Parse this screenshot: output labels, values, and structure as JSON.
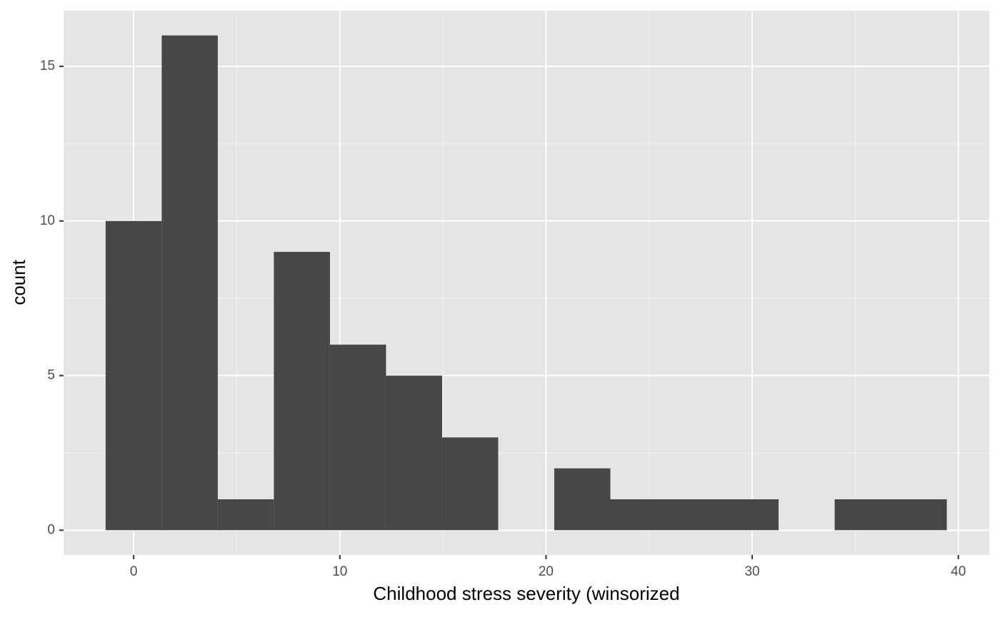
{
  "chart_data": {
    "type": "histogram",
    "x_label": "Childhood stress severity (winsorized",
    "y_label": "count",
    "bins": [
      -1.36,
      1.36,
      4.08,
      6.8,
      9.52,
      12.24,
      14.96,
      17.68,
      20.4,
      23.12,
      25.84,
      28.56,
      31.28,
      34.0,
      36.72,
      39.44
    ],
    "values": [
      10,
      16,
      1,
      9,
      6,
      5,
      3,
      0,
      2,
      1,
      1,
      1,
      0,
      1,
      1
    ],
    "color": "#474747",
    "xlim": [
      -3.4,
      41.5
    ],
    "xticks": [
      0,
      10,
      20,
      30,
      40
    ],
    "ylim": [
      -0.8,
      16.8
    ],
    "yticks": [
      0,
      5,
      10,
      15
    ],
    "grid": true,
    "minor_grid": true
  }
}
